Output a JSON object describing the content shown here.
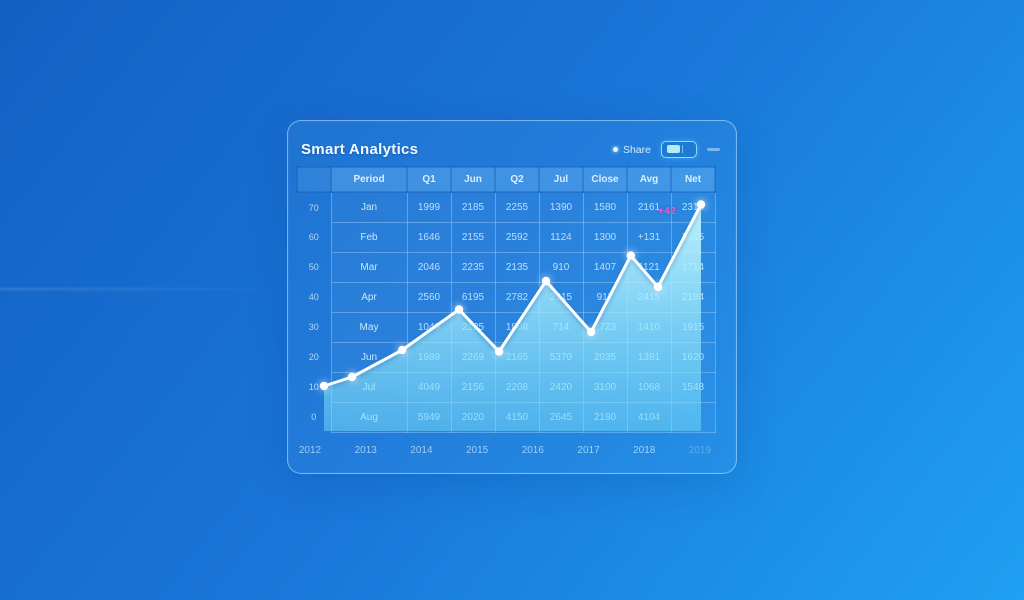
{
  "colors": {
    "background_start": "#1460c3",
    "background_mid": "#1976d8",
    "background_end": "#1fa0f2",
    "panel_border": "rgba(195,228,255,0.55)",
    "grid_line": "rgba(178,224,255,0.38)",
    "annotation_pink": "#ee58cc",
    "chart_line": "#fcfeff"
  },
  "panel": {
    "title": "Smart Analytics",
    "controls": {
      "status_label": "Share",
      "toggle_state": "on"
    }
  },
  "table": {
    "corner_label": "",
    "headers": [
      "Period",
      "Q1",
      "Jun",
      "Q2",
      "Jul",
      "Close",
      "Avg",
      "Net"
    ],
    "rows": [
      {
        "label": "70",
        "period": "Jan",
        "values": [
          "1999",
          "2185",
          "2255",
          "1390",
          "1580",
          "2161",
          "2310"
        ]
      },
      {
        "label": "60",
        "period": "Feb",
        "values": [
          "1646",
          "2155",
          "2592",
          "1124",
          "1300",
          "+131",
          "3415"
        ]
      },
      {
        "label": "50",
        "period": "Mar",
        "values": [
          "2046",
          "2235",
          "2135",
          "910",
          "1407",
          "1121",
          "1714"
        ]
      },
      {
        "label": "40",
        "period": "Apr",
        "values": [
          "2560",
          "6195",
          "2782",
          "2315",
          "917",
          "2415",
          "2184"
        ]
      },
      {
        "label": "30",
        "period": "May",
        "values": [
          "1049",
          "2125",
          "1808",
          "714",
          "2723",
          "1410",
          "1915"
        ]
      },
      {
        "label": "20",
        "period": "Jun",
        "values": [
          "1989",
          "2269",
          "2165",
          "5370",
          "2035",
          "1381",
          "1620"
        ]
      },
      {
        "label": "10",
        "period": "Jul",
        "values": [
          "4049",
          "2156",
          "2208",
          "2420",
          "3100",
          "1068",
          "1548"
        ]
      },
      {
        "label": "0",
        "period": "Aug",
        "values": [
          "5949",
          "2020",
          "4150",
          "2645",
          "2180",
          "4104",
          ""
        ]
      }
    ]
  },
  "chart_data": {
    "type": "line",
    "title": "",
    "xlabel": "",
    "ylabel": "",
    "x_labels": [
      "2012",
      "2013",
      "2014",
      "2015",
      "2016",
      "2017",
      "2018",
      "2019"
    ],
    "y_ticks": [
      70,
      60,
      50,
      40,
      30,
      20,
      10,
      0
    ],
    "ylim": [
      0,
      80
    ],
    "grid": true,
    "legend": false,
    "points": [
      {
        "x": 0.067,
        "v": 10
      },
      {
        "x": 0.134,
        "v": 13
      },
      {
        "x": 0.254,
        "v": 22
      },
      {
        "x": 0.39,
        "v": 35.5
      },
      {
        "x": 0.486,
        "v": 21.5
      },
      {
        "x": 0.598,
        "v": 45
      },
      {
        "x": 0.706,
        "v": 28
      },
      {
        "x": 0.801,
        "v": 53.5
      },
      {
        "x": 0.866,
        "v": 43
      },
      {
        "x": 0.969,
        "v": 70.5
      }
    ],
    "line_color": "#fcfeff",
    "area_top_color": "rgba(198,248,255,0.95)",
    "area_bottom_color": "rgba(116,220,248,0.5)",
    "annotation": {
      "text": "+42",
      "color": "#ee58cc"
    }
  }
}
